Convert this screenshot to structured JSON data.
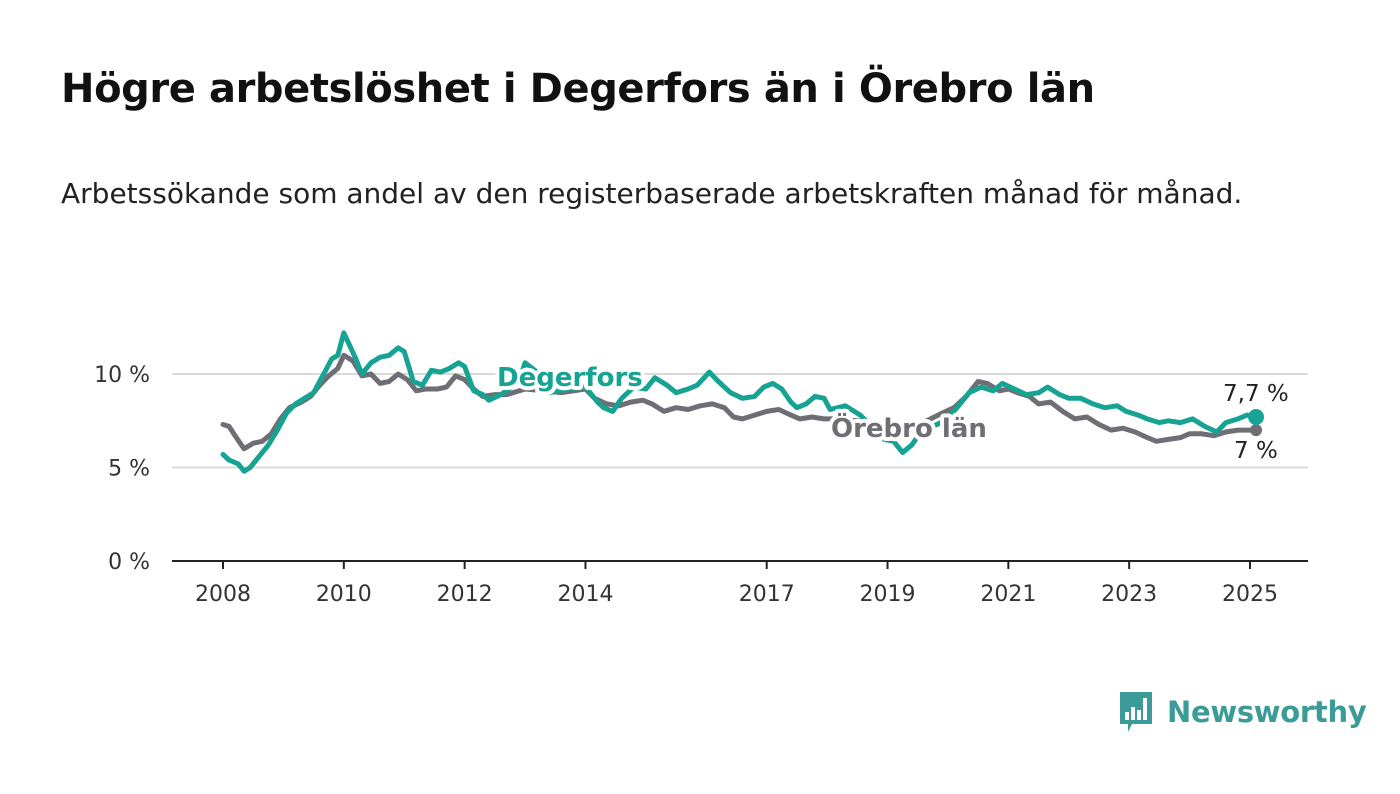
{
  "title": "Högre arbetslöshet i Degerfors än i Örebro län",
  "subtitle": "Arbetssökande som andel av den registerbaserade arbetskraften månad för månad.",
  "brand": {
    "name": "Newsworthy",
    "color": "#3a9b98",
    "icon": "bar-chart-speech-bubble-icon"
  },
  "chart_data": {
    "type": "line",
    "ylim": [
      0,
      13
    ],
    "y_ticks": [
      0,
      5,
      10
    ],
    "y_tick_labels": [
      "0 %",
      "5 %",
      "10 %"
    ],
    "xlim": [
      2007.75,
      2025.9
    ],
    "x_ticks": [
      2008,
      2010,
      2012,
      2014,
      2017,
      2019,
      2021,
      2023,
      2025
    ],
    "x_tick_labels": [
      "2008",
      "2010",
      "2012",
      "2014",
      "2017",
      "2019",
      "2021",
      "2023",
      "2025"
    ],
    "grid": true,
    "series": [
      {
        "name": "Degerfors",
        "color": "#16a393",
        "end_label": "7,7 %",
        "values": [
          [
            2008.0,
            5.7
          ],
          [
            2008.1,
            5.4
          ],
          [
            2008.25,
            5.2
          ],
          [
            2008.35,
            4.8
          ],
          [
            2008.45,
            5.0
          ],
          [
            2008.6,
            5.6
          ],
          [
            2008.75,
            6.2
          ],
          [
            2008.9,
            7.0
          ],
          [
            2009.05,
            7.9
          ],
          [
            2009.2,
            8.4
          ],
          [
            2009.35,
            8.7
          ],
          [
            2009.5,
            9.0
          ],
          [
            2009.6,
            9.6
          ],
          [
            2009.7,
            10.2
          ],
          [
            2009.8,
            10.8
          ],
          [
            2009.9,
            11.0
          ],
          [
            2010.0,
            12.2
          ],
          [
            2010.1,
            11.5
          ],
          [
            2010.2,
            10.8
          ],
          [
            2010.3,
            10.0
          ],
          [
            2010.45,
            10.6
          ],
          [
            2010.6,
            10.9
          ],
          [
            2010.75,
            11.0
          ],
          [
            2010.9,
            11.4
          ],
          [
            2011.0,
            11.2
          ],
          [
            2011.15,
            9.6
          ],
          [
            2011.3,
            9.4
          ],
          [
            2011.45,
            10.2
          ],
          [
            2011.6,
            10.1
          ],
          [
            2011.75,
            10.3
          ],
          [
            2011.9,
            10.6
          ],
          [
            2012.0,
            10.4
          ],
          [
            2012.15,
            9.1
          ],
          [
            2012.3,
            8.9
          ],
          [
            2012.4,
            8.6
          ],
          [
            2012.6,
            8.9
          ],
          [
            2012.9,
            9.6
          ],
          [
            2013.0,
            10.6
          ],
          [
            2013.2,
            10.1
          ],
          [
            2013.4,
            9.0
          ],
          [
            2013.7,
            9.2
          ],
          [
            2014.0,
            9.3
          ],
          [
            2014.2,
            8.5
          ],
          [
            2014.3,
            8.2
          ],
          [
            2014.45,
            8.0
          ],
          [
            2014.6,
            8.7
          ],
          [
            2014.8,
            9.3
          ],
          [
            2015.0,
            9.2
          ],
          [
            2015.15,
            9.8
          ],
          [
            2015.35,
            9.4
          ],
          [
            2015.5,
            9.0
          ],
          [
            2015.7,
            9.2
          ],
          [
            2015.85,
            9.4
          ],
          [
            2016.05,
            10.1
          ],
          [
            2016.2,
            9.6
          ],
          [
            2016.4,
            9.0
          ],
          [
            2016.6,
            8.7
          ],
          [
            2016.8,
            8.8
          ],
          [
            2016.95,
            9.3
          ],
          [
            2017.1,
            9.5
          ],
          [
            2017.25,
            9.2
          ],
          [
            2017.4,
            8.5
          ],
          [
            2017.5,
            8.2
          ],
          [
            2017.65,
            8.4
          ],
          [
            2017.8,
            8.8
          ],
          [
            2017.95,
            8.7
          ],
          [
            2018.05,
            8.1
          ],
          [
            2018.3,
            8.3
          ],
          [
            2018.55,
            7.8
          ],
          [
            2018.8,
            7.0
          ],
          [
            2018.95,
            6.5
          ],
          [
            2019.1,
            6.4
          ],
          [
            2019.25,
            5.8
          ],
          [
            2019.4,
            6.2
          ],
          [
            2019.55,
            6.9
          ],
          [
            2019.75,
            7.2
          ],
          [
            2019.95,
            7.5
          ],
          [
            2020.15,
            8.2
          ],
          [
            2020.35,
            9.0
          ],
          [
            2020.55,
            9.3
          ],
          [
            2020.75,
            9.1
          ],
          [
            2020.9,
            9.5
          ],
          [
            2021.1,
            9.2
          ],
          [
            2021.3,
            8.9
          ],
          [
            2021.5,
            9.0
          ],
          [
            2021.65,
            9.3
          ],
          [
            2021.85,
            8.9
          ],
          [
            2022.0,
            8.7
          ],
          [
            2022.2,
            8.7
          ],
          [
            2022.4,
            8.4
          ],
          [
            2022.6,
            8.2
          ],
          [
            2022.8,
            8.3
          ],
          [
            2022.95,
            8.0
          ],
          [
            2023.15,
            7.8
          ],
          [
            2023.3,
            7.6
          ],
          [
            2023.5,
            7.4
          ],
          [
            2023.65,
            7.5
          ],
          [
            2023.85,
            7.4
          ],
          [
            2024.05,
            7.6
          ],
          [
            2024.25,
            7.2
          ],
          [
            2024.45,
            6.9
          ],
          [
            2024.6,
            7.4
          ],
          [
            2024.8,
            7.6
          ],
          [
            2024.95,
            7.8
          ],
          [
            2025.1,
            7.7
          ]
        ]
      },
      {
        "name": "Örebro län",
        "color": "#6e6e74",
        "end_label": "7 %",
        "values": [
          [
            2008.0,
            7.3
          ],
          [
            2008.1,
            7.2
          ],
          [
            2008.2,
            6.7
          ],
          [
            2008.35,
            6.0
          ],
          [
            2008.5,
            6.3
          ],
          [
            2008.65,
            6.4
          ],
          [
            2008.8,
            6.8
          ],
          [
            2008.95,
            7.6
          ],
          [
            2009.1,
            8.2
          ],
          [
            2009.3,
            8.5
          ],
          [
            2009.45,
            8.8
          ],
          [
            2009.6,
            9.4
          ],
          [
            2009.75,
            9.9
          ],
          [
            2009.9,
            10.3
          ],
          [
            2010.0,
            11.0
          ],
          [
            2010.15,
            10.7
          ],
          [
            2010.3,
            9.9
          ],
          [
            2010.45,
            10.0
          ],
          [
            2010.6,
            9.5
          ],
          [
            2010.75,
            9.6
          ],
          [
            2010.9,
            10.0
          ],
          [
            2011.05,
            9.7
          ],
          [
            2011.2,
            9.1
          ],
          [
            2011.35,
            9.2
          ],
          [
            2011.55,
            9.2
          ],
          [
            2011.7,
            9.3
          ],
          [
            2011.85,
            9.9
          ],
          [
            2012.0,
            9.7
          ],
          [
            2012.15,
            9.2
          ],
          [
            2012.3,
            8.8
          ],
          [
            2012.5,
            8.9
          ],
          [
            2012.7,
            8.9
          ],
          [
            2013.0,
            9.2
          ],
          [
            2013.3,
            9.1
          ],
          [
            2013.6,
            9.0
          ],
          [
            2014.0,
            9.2
          ],
          [
            2014.15,
            8.7
          ],
          [
            2014.35,
            8.4
          ],
          [
            2014.55,
            8.3
          ],
          [
            2014.75,
            8.5
          ],
          [
            2014.95,
            8.6
          ],
          [
            2015.1,
            8.4
          ],
          [
            2015.3,
            8.0
          ],
          [
            2015.5,
            8.2
          ],
          [
            2015.7,
            8.1
          ],
          [
            2015.9,
            8.3
          ],
          [
            2016.1,
            8.4
          ],
          [
            2016.3,
            8.2
          ],
          [
            2016.45,
            7.7
          ],
          [
            2016.6,
            7.6
          ],
          [
            2016.8,
            7.8
          ],
          [
            2017.0,
            8.0
          ],
          [
            2017.2,
            8.1
          ],
          [
            2017.4,
            7.8
          ],
          [
            2017.55,
            7.6
          ],
          [
            2017.75,
            7.7
          ],
          [
            2017.95,
            7.6
          ],
          [
            2018.2,
            7.6
          ],
          [
            2018.5,
            7.5
          ],
          [
            2018.8,
            7.3
          ],
          [
            2019.0,
            7.3
          ],
          [
            2019.2,
            7.2
          ],
          [
            2019.45,
            7.3
          ],
          [
            2019.65,
            7.5
          ],
          [
            2019.9,
            7.9
          ],
          [
            2020.1,
            8.2
          ],
          [
            2020.3,
            8.8
          ],
          [
            2020.5,
            9.6
          ],
          [
            2020.65,
            9.5
          ],
          [
            2020.85,
            9.1
          ],
          [
            2021.0,
            9.2
          ],
          [
            2021.15,
            9.0
          ],
          [
            2021.35,
            8.8
          ],
          [
            2021.5,
            8.4
          ],
          [
            2021.7,
            8.5
          ],
          [
            2021.9,
            8.0
          ],
          [
            2022.1,
            7.6
          ],
          [
            2022.3,
            7.7
          ],
          [
            2022.5,
            7.3
          ],
          [
            2022.7,
            7.0
          ],
          [
            2022.9,
            7.1
          ],
          [
            2023.1,
            6.9
          ],
          [
            2023.3,
            6.6
          ],
          [
            2023.45,
            6.4
          ],
          [
            2023.65,
            6.5
          ],
          [
            2023.85,
            6.6
          ],
          [
            2024.0,
            6.8
          ],
          [
            2024.2,
            6.8
          ],
          [
            2024.4,
            6.7
          ],
          [
            2024.6,
            6.9
          ],
          [
            2024.8,
            7.0
          ],
          [
            2024.95,
            7.0
          ],
          [
            2025.1,
            7.0
          ]
        ]
      }
    ]
  }
}
